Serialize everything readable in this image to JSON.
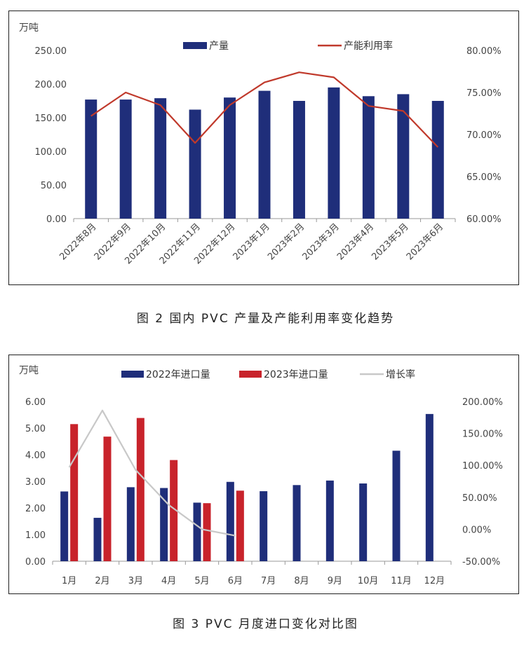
{
  "colors": {
    "navy": "#1f2e7a",
    "red": "#c8232b",
    "line_red": "#c0392b",
    "gray": "#c8c8c8",
    "axis": "#999999"
  },
  "chart_data": [
    {
      "type": "bar",
      "unit_label": "万吨",
      "categories": [
        "2022年8月",
        "2022年9月",
        "2022年10月",
        "2022年11月",
        "2022年12月",
        "2023年1月",
        "2023年2月",
        "2023年3月",
        "2023年4月",
        "2023年5月",
        "2023年6月"
      ],
      "series": [
        {
          "name": "产量",
          "type": "bar",
          "axis": "left",
          "color": "#1f2e7a",
          "values": [
            177,
            177,
            179,
            162,
            180,
            190,
            175,
            195,
            182,
            185,
            175
          ]
        },
        {
          "name": "产能利用率",
          "type": "line",
          "axis": "right",
          "color": "#c0392b",
          "values": [
            72.2,
            75.0,
            73.5,
            69.0,
            73.5,
            76.2,
            77.4,
            76.8,
            73.4,
            72.8,
            68.5
          ]
        }
      ],
      "left_axis": {
        "min": 0,
        "max": 250,
        "ticks": [
          "0.00",
          "50.00",
          "100.00",
          "150.00",
          "200.00",
          "250.00"
        ]
      },
      "right_axis": {
        "min": 60,
        "max": 80,
        "ticks": [
          "60.00%",
          "65.00%",
          "70.00%",
          "75.00%",
          "80.00%"
        ]
      },
      "legend_position": "top",
      "grid": false,
      "caption": "图 2  国内 PVC 产量及产能利用率变化趋势"
    },
    {
      "type": "bar",
      "unit_label": "万吨",
      "categories": [
        "1月",
        "2月",
        "3月",
        "4月",
        "5月",
        "6月",
        "7月",
        "8月",
        "9月",
        "10月",
        "11月",
        "12月"
      ],
      "series": [
        {
          "name": "2022年进口量",
          "type": "bar",
          "axis": "left",
          "color": "#1f2e7a",
          "values": [
            2.62,
            1.63,
            2.78,
            2.75,
            2.2,
            2.98,
            2.63,
            2.86,
            3.03,
            2.92,
            4.15,
            5.53
          ]
        },
        {
          "name": "2023年进口量",
          "type": "bar",
          "axis": "left",
          "color": "#c8232b",
          "values": [
            5.15,
            4.68,
            5.38,
            3.8,
            2.18,
            2.65,
            null,
            null,
            null,
            null,
            null,
            null
          ]
        },
        {
          "name": "增长率",
          "type": "line",
          "axis": "right",
          "color": "#c8c8c8",
          "values": [
            97,
            186,
            93,
            38,
            0,
            -10,
            null,
            null,
            null,
            null,
            null,
            null
          ]
        }
      ],
      "left_axis": {
        "min": 0,
        "max": 6,
        "ticks": [
          "0.00",
          "1.00",
          "2.00",
          "3.00",
          "4.00",
          "5.00",
          "6.00"
        ]
      },
      "right_axis": {
        "min": -50,
        "max": 200,
        "ticks": [
          "-50.00%",
          "0.00%",
          "50.00%",
          "100.00%",
          "150.00%",
          "200.00%"
        ]
      },
      "legend_position": "top",
      "grid": false,
      "caption": "图 3  PVC 月度进口变化对比图"
    }
  ]
}
